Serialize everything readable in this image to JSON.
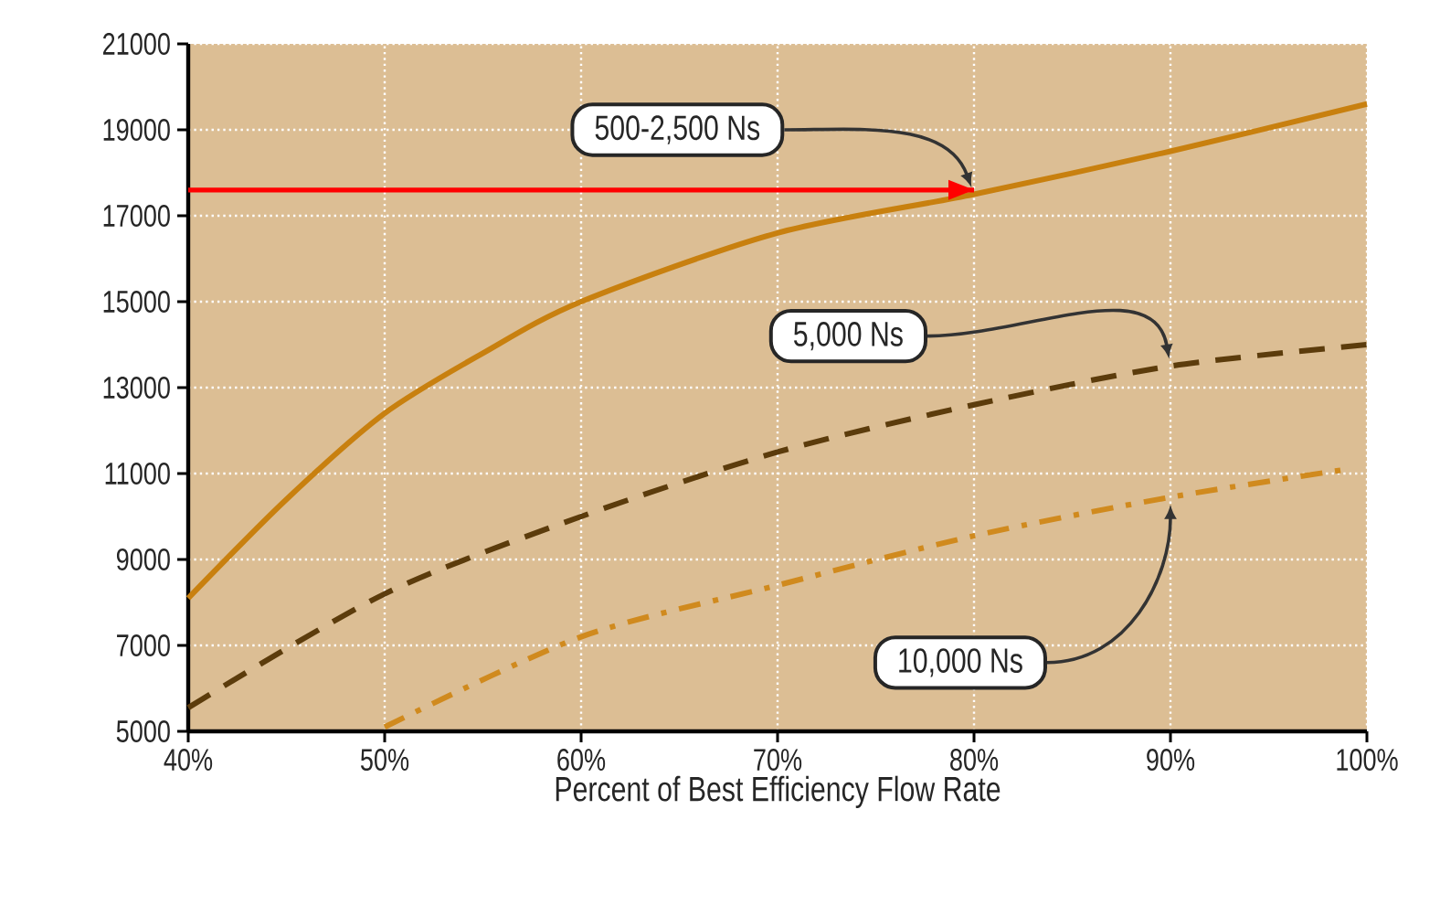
{
  "chart_data": {
    "type": "line",
    "xlabel": "Percent of Best Efficiency Flow Rate",
    "xlim": [
      40,
      100
    ],
    "xticks": [
      {
        "value": 40,
        "label": "40%"
      },
      {
        "value": 50,
        "label": "50%"
      },
      {
        "value": 60,
        "label": "60%"
      },
      {
        "value": 70,
        "label": "70%"
      },
      {
        "value": 80,
        "label": "80%"
      },
      {
        "value": 90,
        "label": "90%"
      },
      {
        "value": 100,
        "label": "100%"
      }
    ],
    "ylim": [
      5000,
      21000
    ],
    "yticks": [
      5000,
      7000,
      9000,
      11000,
      13000,
      15000,
      17000,
      19000,
      21000
    ],
    "grid": true,
    "series": [
      {
        "name": "500-2,500 Ns",
        "color": "#c8800f",
        "line_style": "solid",
        "x": [
          40,
          45,
          50,
          55,
          60,
          70,
          80,
          90,
          100
        ],
        "values": [
          8100,
          10400,
          12400,
          13800,
          15000,
          16600,
          17500,
          18500,
          19600
        ]
      },
      {
        "name": "5,000 Ns",
        "color": "#5c3c0c",
        "line_style": "dashed",
        "x": [
          40,
          50,
          60,
          70,
          80,
          90,
          100
        ],
        "values": [
          5550,
          8200,
          10000,
          11500,
          12600,
          13500,
          14000
        ]
      },
      {
        "name": "10,000 Ns",
        "color": "#d08a1e",
        "line_style": "dashdot",
        "x": [
          50,
          60,
          70,
          80,
          90,
          99
        ],
        "values": [
          5100,
          7200,
          8400,
          9550,
          10450,
          11100
        ]
      },
      {
        "color": "#ff0000",
        "line_style": "solid",
        "x": [
          40,
          80
        ],
        "values": [
          17600,
          17600
        ]
      }
    ]
  }
}
